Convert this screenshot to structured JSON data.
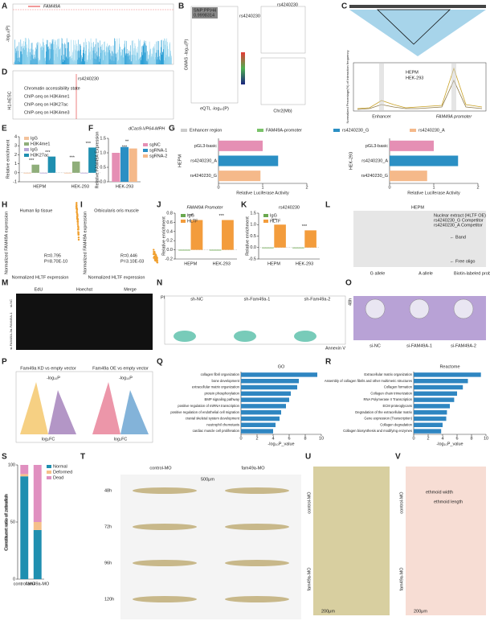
{
  "letters": [
    "A",
    "B",
    "C",
    "D",
    "E",
    "F",
    "G",
    "H",
    "I",
    "J",
    "K",
    "L",
    "M",
    "N",
    "O",
    "P",
    "Q",
    "R",
    "S",
    "T",
    "U",
    "V"
  ],
  "A": {
    "gene": "FAM49A",
    "ylabel": "-log₁₀(P)"
  },
  "B": {
    "box_title": "SNP:PP.H4",
    "box_value": "0.9998314",
    "snp": "rs4240230",
    "gwas": "GWAS -log₁₀(P)",
    "eqtl": "eQTL -log₁₀(P)",
    "chr": "Chr2(Mb)"
  },
  "C": {
    "legend": [
      "HEPM",
      "HEK-293"
    ],
    "enhancer": "Enhancer",
    "promoter": "FAM49A promoter",
    "ylabel": "Normalized Percentage(%) of Interaction frequency"
  },
  "D": {
    "tracks": [
      "Chromatin accessibility state",
      "ChIP-seq on H3K4me1",
      "ChIP-seq on H3K27ac",
      "ChIP-seq on H3K4me3"
    ],
    "cell": "H1-hESC",
    "snp": "rs4240230"
  },
  "E": {
    "ylabel": "Relative enrichment",
    "categories": [
      "HEPM",
      "HEK-293"
    ],
    "series": [
      {
        "name": "IgG",
        "color": "#f3c29b",
        "values": [
          0,
          0
        ]
      },
      {
        "name": "H3K4me1",
        "color": "#8fae7a",
        "values": [
          0.9,
          1.25
        ]
      },
      {
        "name": "IgG",
        "color": "#b9a6d6",
        "values": [
          0,
          0
        ]
      },
      {
        "name": "H3K27ac",
        "color": "#1f8fb0",
        "values": [
          1.8,
          2.8
        ]
      }
    ],
    "ylim": [
      -1,
      4
    ],
    "yticks": [
      -1,
      0,
      1,
      2,
      3,
      4
    ],
    "stars": [
      "***",
      "***",
      "***",
      "***"
    ]
  },
  "F": {
    "title": "dCas9-VP64-MPH",
    "ylabel": "Relative FAM49A Expression",
    "categories": [
      "HEK-293"
    ],
    "series": [
      {
        "name": "sgNC",
        "color": "#e58fb4",
        "values": [
          1.0
        ]
      },
      {
        "name": "sgRNA-1",
        "color": "#2b8fc4",
        "values": [
          1.2
        ]
      },
      {
        "name": "sgRNA-2",
        "color": "#f5b98a",
        "values": [
          1.15
        ]
      }
    ],
    "ylim": [
      0,
      1.5
    ],
    "yticks": [
      {
        "value": 0,
        "label": "0.0"
      },
      {
        "value": 0.5,
        "label": "0.5"
      },
      {
        "value": 1,
        "label": "1.0"
      },
      {
        "value": 1.5,
        "label": "1.5"
      }
    ],
    "stars": [
      "**",
      "***"
    ]
  },
  "G": {
    "legend": [
      "Enhancer region",
      "FAM49A-promoter",
      "rs4240230_G",
      "rs4240230_A"
    ],
    "xlabel": "Relative Luciferase Activity",
    "charts": [
      {
        "label": "HEPM",
        "categories": [
          "pGL3-basic",
          "rs4240230_A",
          "rs4240230_G"
        ],
        "values": [
          1.0,
          1.35,
          0.95
        ],
        "colors": [
          "#e58fb4",
          "#2b8fc4",
          "#f5b98a"
        ],
        "xlim": [
          0,
          2
        ],
        "xticks": [
          0,
          1,
          2
        ]
      },
      {
        "label": "HEK-293",
        "categories": [
          "pGL3-basic",
          "rs4240230_A",
          "rs4240230_G"
        ],
        "values": [
          1.0,
          1.55,
          0.85
        ],
        "colors": [
          "#e58fb4",
          "#2b8fc4",
          "#f5b98a"
        ],
        "xlim": [
          0,
          2
        ],
        "xticks": [
          0,
          1,
          2
        ]
      }
    ]
  },
  "H": {
    "title": "Human lip tissue",
    "r": "R=0.795",
    "p": "P=8.70E-10",
    "xlabel": "Normalized HLTF expression",
    "ylabel": "Normalized FAM49A expression"
  },
  "I": {
    "title": "Orbicularis oris muscle",
    "r": "R=0.446",
    "p": "P=3.10E-03",
    "xlabel": "Normalized HLTF expression",
    "ylabel": "Normalized FAM49A expression"
  },
  "J": {
    "title": "FAM49A Promoter",
    "ylabel": "Relative enrichment",
    "categories": [
      "HEPM",
      "HEK-293"
    ],
    "series": [
      {
        "name": "IgG",
        "color": "#6aa84f",
        "values": [
          0,
          0
        ]
      },
      {
        "name": "HLTF",
        "color": "#f39c3c",
        "values": [
          0.65,
          0.65
        ]
      }
    ],
    "ylim": [
      -0.2,
      0.8
    ],
    "yticks": [
      {
        "value": -0.2,
        "label": "-0.2"
      },
      {
        "value": 0,
        "label": "0.0"
      },
      {
        "value": 0.2,
        "label": "0.2"
      },
      {
        "value": 0.4,
        "label": "0.4"
      },
      {
        "value": 0.6,
        "label": "0.6"
      },
      {
        "value": 0.8,
        "label": "0.8"
      }
    ],
    "stars": [
      "***",
      "***"
    ]
  },
  "K": {
    "title": "rs4240230",
    "ylabel": "Relative enrichment",
    "categories": [
      "HEPM",
      "HEK-293"
    ],
    "series": [
      {
        "name": "IgG",
        "color": "#6aa84f",
        "values": [
          0,
          0
        ]
      },
      {
        "name": "HLTF",
        "color": "#f39c3c",
        "values": [
          1.0,
          0.75
        ]
      }
    ],
    "ylim": [
      -0.5,
      1.5
    ],
    "yticks": [
      {
        "value": -0.5,
        "label": "-0.5"
      },
      {
        "value": 0,
        "label": "0.0"
      },
      {
        "value": 0.5,
        "label": "0.5"
      },
      {
        "value": 1,
        "label": "1.0"
      },
      {
        "value": 1.5,
        "label": "1.5"
      }
    ],
    "stars": [
      "***",
      "***"
    ]
  },
  "L": {
    "title": "HEPM",
    "rows": [
      "Nuclear extract (HLTF OE)",
      "rs4240230_G Competitor",
      "rs4240230_A Competitor"
    ],
    "band": "← Band",
    "free": "← Free oligo",
    "alleles": [
      "G allele",
      "A allele"
    ],
    "probe": "Biotin-labeled probe"
  },
  "M": {
    "cols": [
      "EdU",
      "Hoechst",
      "Merge"
    ],
    "rows": [
      "si-NC",
      "si-FAM49A-1",
      "si-FAM49A-2"
    ]
  },
  "N": {
    "plots": [
      "sh-NC",
      "sh-Fam49a-1",
      "sh-Fam49a-2"
    ],
    "xlabel": "Annexin V",
    "ylabel": "PI"
  },
  "O": {
    "time": "48h",
    "wells": [
      "si-NC",
      "si-FAM49A-1",
      "si-FAM49A-2"
    ]
  },
  "P": {
    "titles": [
      "Fam49a KD vs empty vector",
      "Fam49a OE vs empty vector"
    ],
    "xlabel": "log₂FC",
    "ylabel": "-log₁₀P"
  },
  "Q": {
    "title": "GO",
    "xlabel": "-log₁₀P_value",
    "color": "#2f86c1",
    "xlim": [
      0,
      10
    ],
    "xticks": [
      0,
      2,
      4,
      6,
      8,
      10
    ],
    "categories": [
      "collagen fibril organization",
      "bone development",
      "extracellular matrix organization",
      "protein phosphorylation",
      "BMP signaling pathway",
      "positive regulation of miRNA transcription",
      "positive regulation of endothelial cell migration",
      "cranial skeletal system development",
      "neutrophil chemotaxis",
      "cardiac muscle cell proliferation"
    ],
    "values": [
      9.5,
      7.2,
      7.0,
      6.2,
      6.0,
      5.6,
      5.0,
      4.8,
      4.3,
      4.0
    ]
  },
  "R": {
    "title": "Reactome",
    "xlabel": "-log₁₀P_value",
    "color": "#2f86c1",
    "xlim": [
      0,
      10
    ],
    "xticks": [
      0,
      2,
      4,
      6,
      8,
      10
    ],
    "categories": [
      "Extracellular matrix organization",
      "Assembly of collagen fibrils and other multimeric structures",
      "Collagen formation",
      "Collagen chain trimerization",
      "RNA Polymerase II Transcription",
      "ECM proteoglycans",
      "Degradation of the extracellular matrix",
      "Gene expression (Transcription)",
      "Collagen degradation",
      "Collagen biosynthesis and modifying enzymes"
    ],
    "values": [
      9.3,
      7.5,
      6.8,
      6.0,
      5.6,
      5.0,
      4.6,
      4.5,
      4.0,
      3.8
    ]
  },
  "S": {
    "ylabel": "Constituent ratio of zebrafish",
    "categories": [
      "control-MO",
      "fam49a-MO"
    ],
    "stacked": true,
    "series": [
      {
        "name": "Normal",
        "color": "#1f8fb0",
        "values": [
          90,
          43
        ]
      },
      {
        "name": "Deformed",
        "color": "#f5c08a",
        "values": [
          2,
          7
        ]
      },
      {
        "name": "Dead",
        "color": "#e090c0",
        "values": [
          8,
          50
        ]
      }
    ],
    "ylim": [
      0,
      100
    ],
    "yticks": [
      0,
      50,
      100
    ]
  },
  "T": {
    "groups": [
      "control-MO",
      "fam49a-MO"
    ],
    "times": [
      "48h",
      "72h",
      "96h",
      "120h"
    ],
    "scale": "500μm"
  },
  "U": {
    "rows": [
      "control-MO",
      "fam49a-MO"
    ],
    "scale": "200μm"
  },
  "V": {
    "rows": [
      "control-MO",
      "fam49a-MO"
    ],
    "width": "ethmoid width",
    "length": "ethmoid length",
    "scale": "200μm"
  }
}
